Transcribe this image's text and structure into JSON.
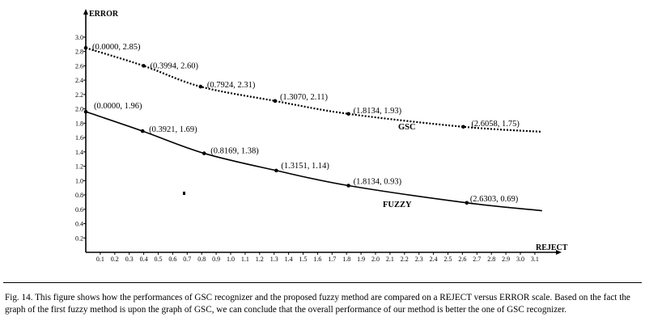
{
  "chart_data": {
    "type": "line",
    "xlabel": "REJECT",
    "ylabel": "ERROR",
    "xlim": [
      0,
      3.2
    ],
    "ylim": [
      0,
      3.0
    ],
    "x_ticks": [
      "0.1",
      "0.2",
      "0.3",
      "0.4",
      "0.5",
      "0.6",
      "0.7",
      "0.8",
      "0.9",
      "1.0",
      "1.1",
      "1.2",
      "1.3",
      "1.4",
      "1.5",
      "1.6",
      "1.7",
      "1.8",
      "1.9",
      "2.0",
      "2.1",
      "2.2",
      "2.3",
      "2.4",
      "2.5",
      "2.6",
      "2.7",
      "2.8",
      "2.9",
      "3.0",
      "3.1"
    ],
    "y_ticks": [
      "0.2",
      "0.4",
      "0.6",
      "0.8",
      "1.0",
      "1.2",
      "1.4",
      "1.6",
      "1.8",
      "2.0",
      "2.2",
      "2.4",
      "2.6",
      "2.8",
      "3.0"
    ],
    "series": [
      {
        "name": "GSC",
        "line_style": "dotted",
        "points": [
          {
            "x": 0.0,
            "y": 2.85,
            "label": "(0.0000, 2.85)"
          },
          {
            "x": 0.3994,
            "y": 2.6,
            "label": "(0.3994, 2.60)"
          },
          {
            "x": 0.7924,
            "y": 2.31,
            "label": "(0.7924, 2.31)"
          },
          {
            "x": 1.307,
            "y": 2.11,
            "label": "(1.3070, 2.11)"
          },
          {
            "x": 1.8134,
            "y": 1.93,
            "label": "(1.8134, 1.93)"
          },
          {
            "x": 2.6058,
            "y": 1.75,
            "label": "(2.6058, 1.75)"
          },
          {
            "x": 3.15,
            "y": 1.68,
            "label": ""
          }
        ]
      },
      {
        "name": "FUZZY",
        "line_style": "solid",
        "points": [
          {
            "x": 0.0,
            "y": 1.96,
            "label": "(0.0000, 1.96)"
          },
          {
            "x": 0.3921,
            "y": 1.69,
            "label": "(0.3921, 1.69)"
          },
          {
            "x": 0.8169,
            "y": 1.38,
            "label": "(0.8169, 1.38)"
          },
          {
            "x": 1.3151,
            "y": 1.14,
            "label": "(1.3151, 1.14)"
          },
          {
            "x": 1.8134,
            "y": 0.93,
            "label": "(1.8134, 0.93)"
          },
          {
            "x": 2.6303,
            "y": 0.69,
            "label": "(2.6303, 0.69)"
          },
          {
            "x": 3.15,
            "y": 0.58,
            "label": ""
          }
        ]
      }
    ],
    "grid": false,
    "legend": "inline labels on curves"
  },
  "caption": "Fig. 14.   This figure shows how the performances of GSC recognizer and the proposed fuzzy method are compared on a REJECT versus ERROR scale. Based on the fact the graph of the first fuzzy method is upon the graph of GSC, we can conclude that the overall performance of our method is better the one of GSC recognizer."
}
